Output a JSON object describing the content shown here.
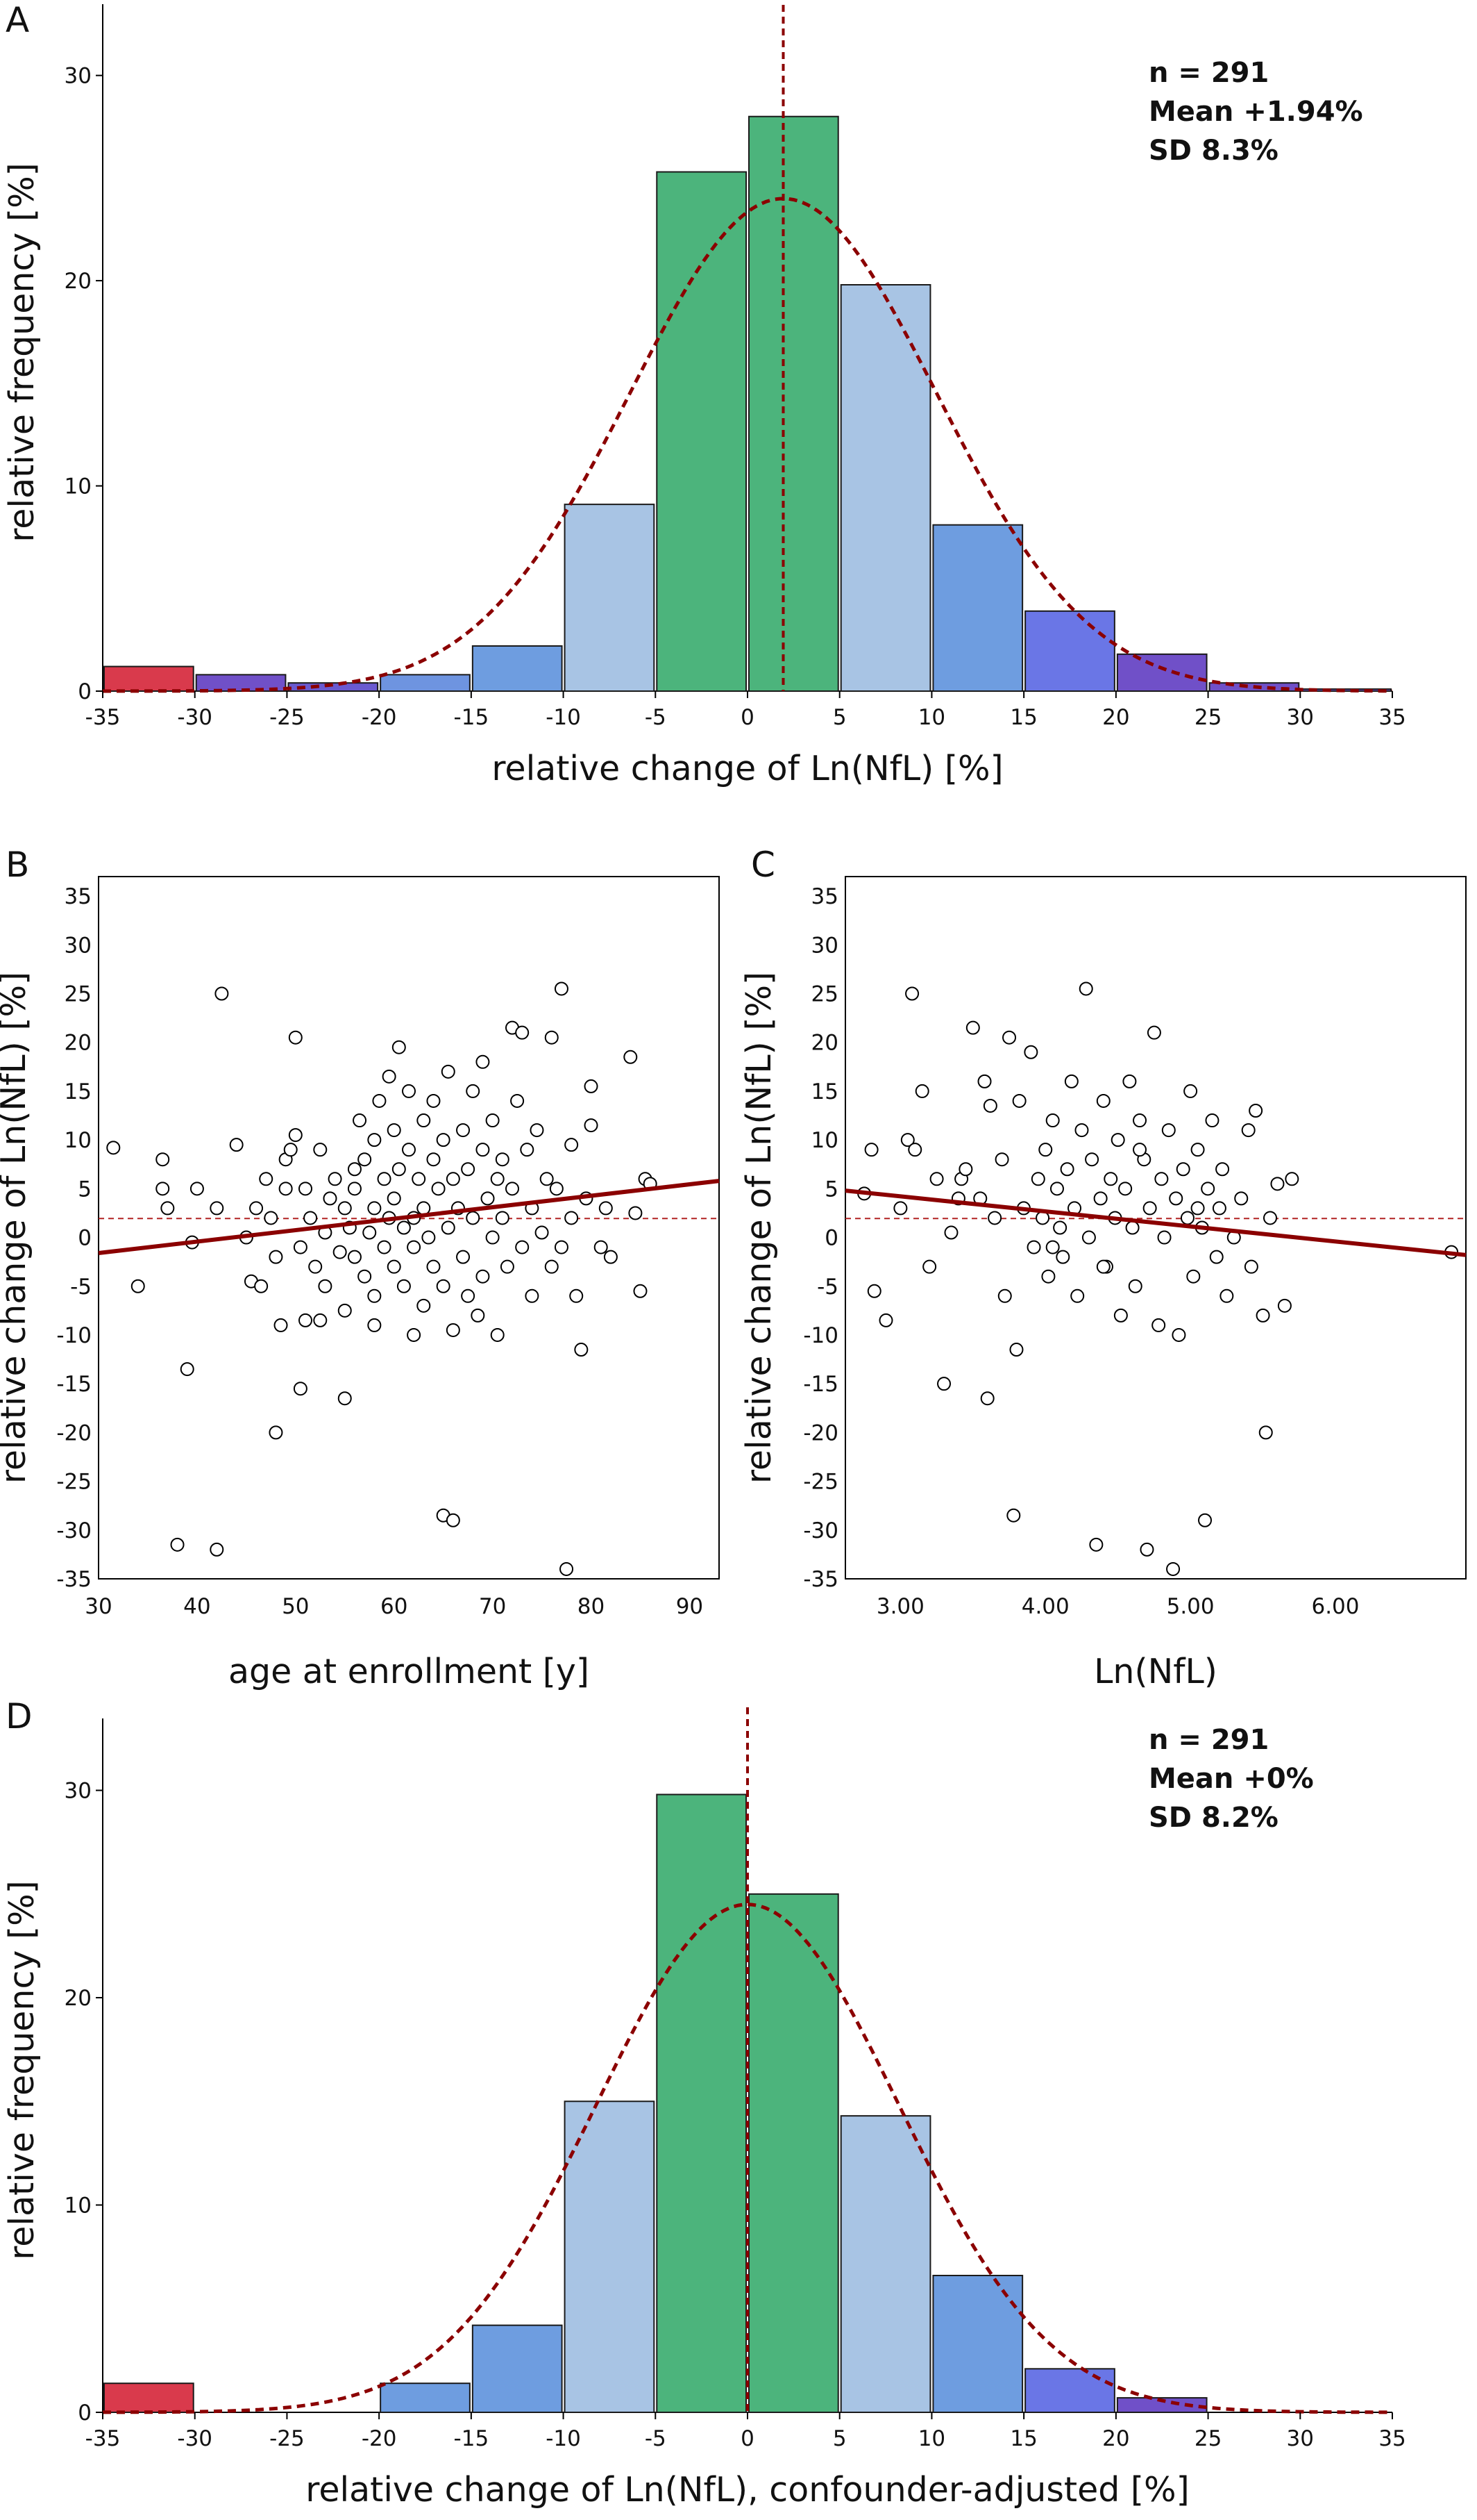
{
  "panels": {
    "A": {
      "label": "A"
    },
    "B": {
      "label": "B"
    },
    "C": {
      "label": "C"
    },
    "D": {
      "label": "D"
    }
  },
  "chart_data": [
    {
      "id": "A",
      "type": "bar",
      "bin_edges": [
        -35,
        -30,
        -25,
        -20,
        -15,
        -10,
        -5,
        0,
        5,
        10,
        15,
        20,
        25,
        30,
        35
      ],
      "values": [
        1.2,
        0.8,
        0.4,
        0.8,
        2.2,
        9.1,
        25.3,
        28.0,
        19.8,
        8.1,
        3.9,
        1.8,
        0.4,
        0.1
      ],
      "bar_colors": [
        "#d93a4c",
        "#7050c8",
        "#6a5ad0",
        "#6e94e0",
        "#6e9de0",
        "#a8c4e4",
        "#4cb47c",
        "#4cb47c",
        "#a8c4e4",
        "#6e9de0",
        "#6a76e6",
        "#7050c8",
        "#7050c8",
        "#7050c8"
      ],
      "normal_curve": {
        "mean": 1.94,
        "sd": 8.3,
        "peak": 24.0,
        "color": "#8b0000"
      },
      "vline": 1.94,
      "xlim": [
        -35,
        35
      ],
      "ylim": [
        0,
        33
      ],
      "xticks": [
        "-35",
        "-30",
        "-25",
        "-20",
        "-15",
        "-10",
        "-5",
        "0",
        "5",
        "10",
        "15",
        "20",
        "25",
        "30",
        "35"
      ],
      "yticks": [
        "0",
        "10",
        "20",
        "30"
      ],
      "xlabel": "relative change of Ln(NfL) [%]",
      "ylabel": "relative frequency [%]",
      "stats": [
        "n = 291",
        "Mean +1.94%",
        "SD        8.3%"
      ]
    },
    {
      "id": "B",
      "type": "scatter",
      "xlabel": "age at enrollment [y]",
      "ylabel": "relative change of Ln(NfL) [%]",
      "xlim": [
        30,
        93
      ],
      "ylim": [
        -35,
        37
      ],
      "xticks": [
        "30",
        "40",
        "50",
        "60",
        "70",
        "80",
        "90"
      ],
      "yticks": [
        "35",
        "30",
        "25",
        "20",
        "15",
        "10",
        "5",
        "0",
        "-5",
        "-10",
        "-15",
        "-20",
        "-25",
        "-30",
        "-35"
      ],
      "fit_line": [
        [
          30,
          -1.6
        ],
        [
          93,
          5.8
        ]
      ],
      "reference_hline": 1.94,
      "points": [
        [
          31.5,
          9.2
        ],
        [
          34,
          -5
        ],
        [
          36.5,
          5
        ],
        [
          36.5,
          8
        ],
        [
          37,
          3
        ],
        [
          38,
          -31.5
        ],
        [
          39,
          -13.5
        ],
        [
          39.5,
          -0.5
        ],
        [
          40,
          5
        ],
        [
          42,
          -32
        ],
        [
          42,
          3
        ],
        [
          42.5,
          25
        ],
        [
          44,
          9.5
        ],
        [
          45,
          0
        ],
        [
          45.5,
          -4.5
        ],
        [
          46,
          3
        ],
        [
          46.5,
          -5
        ],
        [
          47,
          6
        ],
        [
          47.5,
          2
        ],
        [
          48,
          -2
        ],
        [
          48,
          -20
        ],
        [
          48.5,
          -9
        ],
        [
          49,
          8
        ],
        [
          49,
          5
        ],
        [
          49.5,
          9
        ],
        [
          50,
          10.5
        ],
        [
          50,
          20.5
        ],
        [
          50.5,
          -1
        ],
        [
          50.5,
          -15.5
        ],
        [
          51,
          5
        ],
        [
          51,
          -8.5
        ],
        [
          51.5,
          2
        ],
        [
          52,
          -3
        ],
        [
          52.5,
          9
        ],
        [
          52.5,
          -8.5
        ],
        [
          53,
          0.5
        ],
        [
          53,
          -5
        ],
        [
          53.5,
          4
        ],
        [
          54,
          6
        ],
        [
          54.5,
          -1.5
        ],
        [
          55,
          3
        ],
        [
          55,
          -7.5
        ],
        [
          55,
          -16.5
        ],
        [
          55.5,
          1
        ],
        [
          56,
          5
        ],
        [
          56,
          7
        ],
        [
          56,
          -2
        ],
        [
          56.5,
          12
        ],
        [
          57,
          8
        ],
        [
          57,
          -4
        ],
        [
          57.5,
          0.5
        ],
        [
          58,
          10
        ],
        [
          58,
          3
        ],
        [
          58,
          -6
        ],
        [
          58.5,
          14
        ],
        [
          59,
          6
        ],
        [
          59,
          -1
        ],
        [
          59.5,
          2
        ],
        [
          59.5,
          16.5
        ],
        [
          60,
          11
        ],
        [
          60,
          4
        ],
        [
          60,
          -3
        ],
        [
          60.5,
          7
        ],
        [
          60.5,
          19.5
        ],
        [
          61,
          1
        ],
        [
          61,
          -5
        ],
        [
          61.5,
          9
        ],
        [
          61.5,
          15
        ],
        [
          62,
          2
        ],
        [
          62,
          -10
        ],
        [
          62,
          -1
        ],
        [
          62.5,
          6
        ],
        [
          63,
          12
        ],
        [
          63,
          3
        ],
        [
          63,
          -7
        ],
        [
          63.5,
          0
        ],
        [
          64,
          8
        ],
        [
          64,
          14
        ],
        [
          64,
          -3
        ],
        [
          64.5,
          5
        ],
        [
          65,
          10
        ],
        [
          65,
          -28.5
        ],
        [
          65,
          -5
        ],
        [
          65.5,
          1
        ],
        [
          65.5,
          17
        ],
        [
          66,
          -29
        ],
        [
          66,
          6
        ],
        [
          66,
          -9.5
        ],
        [
          66.5,
          3
        ],
        [
          67,
          11
        ],
        [
          67,
          -2
        ],
        [
          67.5,
          7
        ],
        [
          67.5,
          -6
        ],
        [
          68,
          15
        ],
        [
          68,
          2
        ],
        [
          68.5,
          -8
        ],
        [
          69,
          9
        ],
        [
          69,
          18
        ],
        [
          69,
          -4
        ],
        [
          69.5,
          4
        ],
        [
          70,
          0
        ],
        [
          70,
          12
        ],
        [
          70.5,
          6
        ],
        [
          70.5,
          -10
        ],
        [
          71,
          2
        ],
        [
          71,
          8
        ],
        [
          71.5,
          -3
        ],
        [
          72,
          21.5
        ],
        [
          72,
          5
        ],
        [
          72.5,
          14
        ],
        [
          73,
          -1
        ],
        [
          73,
          21
        ],
        [
          73.5,
          9
        ],
        [
          74,
          3
        ],
        [
          74,
          -6
        ],
        [
          74.5,
          11
        ],
        [
          75,
          0.5
        ],
        [
          75.5,
          6
        ],
        [
          76,
          -3
        ],
        [
          76,
          20.5
        ],
        [
          76.5,
          5
        ],
        [
          77,
          25.5
        ],
        [
          77,
          -1
        ],
        [
          77.5,
          -34
        ],
        [
          78,
          9.5
        ],
        [
          78,
          2
        ],
        [
          78.5,
          -6
        ],
        [
          79,
          -11.5
        ],
        [
          79.5,
          4
        ],
        [
          80,
          11.5
        ],
        [
          80,
          15.5
        ],
        [
          81,
          -1
        ],
        [
          81.5,
          3
        ],
        [
          82,
          -2
        ],
        [
          84,
          18.5
        ],
        [
          85,
          -5.5
        ],
        [
          85.5,
          6
        ],
        [
          86,
          5.5
        ],
        [
          84.5,
          2.5
        ],
        [
          58,
          -9
        ]
      ]
    },
    {
      "id": "C",
      "type": "scatter",
      "xlabel": "Ln(NfL)",
      "ylabel": "relative change of Ln(NfL) [%]",
      "xlim": [
        2.62,
        6.9
      ],
      "ylim": [
        -35,
        37
      ],
      "xticks": [
        "3.00",
        "4.00",
        "5.00",
        "6.00"
      ],
      "yticks": [
        "35",
        "30",
        "25",
        "20",
        "15",
        "10",
        "5",
        "0",
        "-5",
        "-10",
        "-15",
        "-20",
        "-25",
        "-30",
        "-35"
      ],
      "fit_line": [
        [
          2.62,
          4.8
        ],
        [
          6.9,
          -1.8
        ]
      ],
      "reference_hline": 1.94,
      "points": [
        [
          2.75,
          4.5
        ],
        [
          2.8,
          9
        ],
        [
          2.82,
          -5.5
        ],
        [
          2.9,
          -8.5
        ],
        [
          3.0,
          3
        ],
        [
          3.05,
          10
        ],
        [
          3.08,
          25
        ],
        [
          3.1,
          9
        ],
        [
          3.15,
          15
        ],
        [
          3.2,
          -3
        ],
        [
          3.25,
          6
        ],
        [
          3.3,
          -15
        ],
        [
          3.35,
          0.5
        ],
        [
          3.4,
          4
        ],
        [
          3.42,
          6
        ],
        [
          3.5,
          21.5
        ],
        [
          3.55,
          4
        ],
        [
          3.58,
          16
        ],
        [
          3.6,
          -16.5
        ],
        [
          3.62,
          13.5
        ],
        [
          3.65,
          2
        ],
        [
          3.7,
          8
        ],
        [
          3.72,
          -6
        ],
        [
          3.75,
          20.5
        ],
        [
          3.78,
          -28.5
        ],
        [
          3.8,
          -11.5
        ],
        [
          3.82,
          14
        ],
        [
          3.85,
          3
        ],
        [
          3.9,
          19
        ],
        [
          3.92,
          -1
        ],
        [
          3.95,
          6
        ],
        [
          3.98,
          2
        ],
        [
          4.0,
          9
        ],
        [
          4.02,
          -4
        ],
        [
          4.05,
          12
        ],
        [
          4.08,
          5
        ],
        [
          4.1,
          1
        ],
        [
          4.12,
          -2
        ],
        [
          4.15,
          7
        ],
        [
          4.18,
          16
        ],
        [
          4.2,
          3
        ],
        [
          4.22,
          -6
        ],
        [
          4.25,
          11
        ],
        [
          4.28,
          25.5
        ],
        [
          4.3,
          0
        ],
        [
          4.32,
          8
        ],
        [
          4.35,
          -31.5
        ],
        [
          4.38,
          4
        ],
        [
          4.4,
          14
        ],
        [
          4.42,
          -3
        ],
        [
          4.45,
          6
        ],
        [
          4.48,
          2
        ],
        [
          4.5,
          10
        ],
        [
          4.52,
          -8
        ],
        [
          4.55,
          5
        ],
        [
          4.58,
          16
        ],
        [
          4.6,
          1
        ],
        [
          4.62,
          -5
        ],
        [
          4.65,
          12
        ],
        [
          4.68,
          8
        ],
        [
          4.7,
          -32
        ],
        [
          4.72,
          3
        ],
        [
          4.75,
          21
        ],
        [
          4.78,
          -9
        ],
        [
          4.8,
          6
        ],
        [
          4.82,
          0
        ],
        [
          4.85,
          11
        ],
        [
          4.88,
          -34
        ],
        [
          4.9,
          4
        ],
        [
          4.92,
          -10
        ],
        [
          4.95,
          7
        ],
        [
          4.98,
          2
        ],
        [
          5.0,
          15
        ],
        [
          5.02,
          -4
        ],
        [
          5.05,
          9
        ],
        [
          5.08,
          1
        ],
        [
          5.1,
          -29
        ],
        [
          5.12,
          5
        ],
        [
          5.15,
          12
        ],
        [
          5.18,
          -2
        ],
        [
          5.2,
          3
        ],
        [
          5.22,
          7
        ],
        [
          5.25,
          -6
        ],
        [
          5.3,
          0
        ],
        [
          5.35,
          4
        ],
        [
          5.4,
          11
        ],
        [
          5.42,
          -3
        ],
        [
          5.45,
          13
        ],
        [
          5.5,
          -8
        ],
        [
          5.52,
          -20
        ],
        [
          5.55,
          2
        ],
        [
          5.6,
          5.5
        ],
        [
          5.65,
          -7
        ],
        [
          5.7,
          6
        ],
        [
          6.8,
          -1.5
        ],
        [
          3.45,
          7
        ],
        [
          4.05,
          -1
        ],
        [
          4.65,
          9
        ],
        [
          4.4,
          -3
        ],
        [
          5.05,
          3
        ]
      ]
    },
    {
      "id": "D",
      "type": "bar",
      "bin_edges": [
        -35,
        -30,
        -25,
        -20,
        -15,
        -10,
        -5,
        0,
        5,
        10,
        15,
        20,
        25,
        30,
        35
      ],
      "values": [
        1.4,
        0,
        0,
        1.4,
        4.2,
        15.0,
        29.8,
        25.0,
        14.3,
        6.6,
        2.1,
        0.7,
        0,
        0
      ],
      "bar_colors": [
        "#d93a4c",
        "#7050c8",
        "#6a5ad0",
        "#6e9de0",
        "#6e9de0",
        "#a8c4e4",
        "#4cb47c",
        "#4cb47c",
        "#a8c4e4",
        "#6e9de0",
        "#6a76e6",
        "#7050c8",
        "#7050c8",
        "#7050c8"
      ],
      "normal_curve": {
        "mean": 0,
        "sd": 8.2,
        "peak": 24.5,
        "color": "#8b0000"
      },
      "vline": 0,
      "xlim": [
        -35,
        35
      ],
      "ylim": [
        0,
        33
      ],
      "xticks": [
        "-35",
        "-30",
        "-25",
        "-20",
        "-15",
        "-10",
        "-5",
        "0",
        "5",
        "10",
        "15",
        "20",
        "25",
        "30",
        "35"
      ],
      "yticks": [
        "0",
        "10",
        "20",
        "30"
      ],
      "xlabel": "relative change of Ln(NfL), confounder-adjusted [%]",
      "ylabel": "relative frequency [%]",
      "stats": [
        "n = 291",
        "Mean +0%",
        "SD        8.2%"
      ]
    }
  ]
}
